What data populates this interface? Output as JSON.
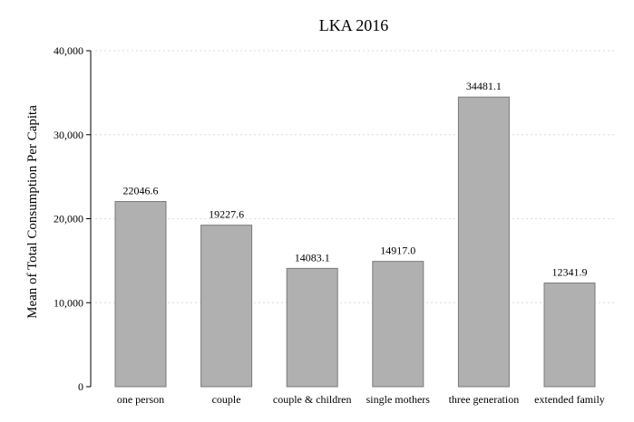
{
  "chart_data": {
    "type": "bar",
    "title": "LKA 2016",
    "xlabel": "",
    "ylabel": "Mean of Total Consumption Per Capita",
    "categories": [
      "one person",
      "couple",
      "couple & children",
      "single mothers",
      "three generation",
      "extended family"
    ],
    "values": [
      22046.6,
      19227.6,
      14083.1,
      14917.0,
      34481.1,
      12341.9
    ],
    "value_labels": [
      "22046.6",
      "19227.6",
      "14083.1",
      "14917.0",
      "34481.1",
      "12341.9"
    ],
    "ylim": [
      0,
      40000
    ],
    "yticks": [
      0,
      10000,
      20000,
      30000,
      40000
    ],
    "ytick_labels": [
      "0",
      "10,000",
      "20,000",
      "30,000",
      "40,000"
    ],
    "grid": true,
    "legend": "none",
    "bar_color": "#b0b0b0"
  }
}
